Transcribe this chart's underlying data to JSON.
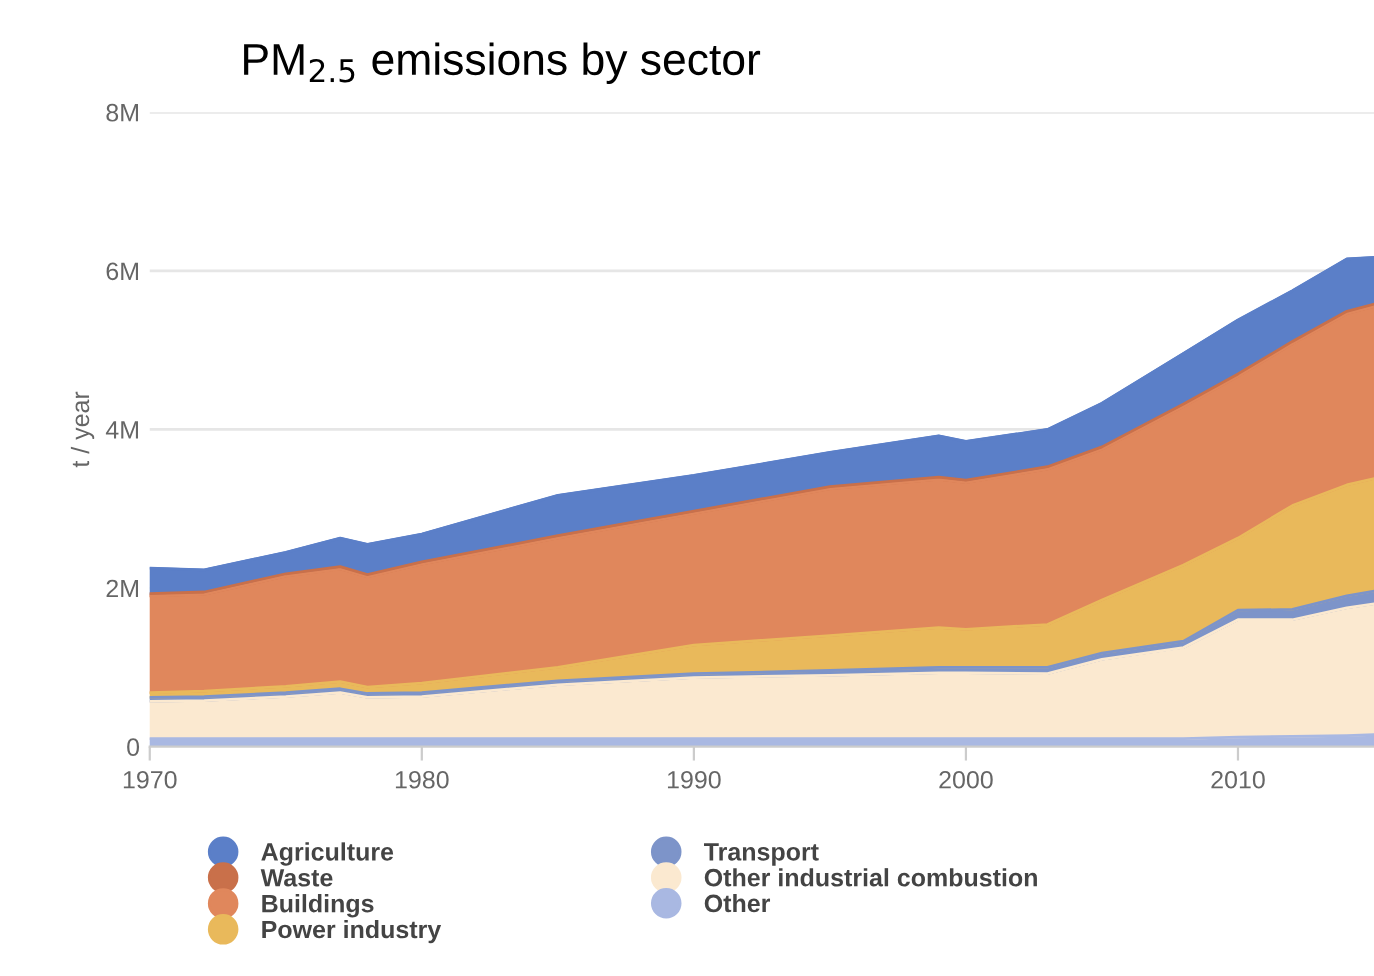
{
  "chart_data": {
    "type": "area",
    "stacked": true,
    "title": "PM$_{2.5}$ emissions by sector",
    "ylabel": "t / year",
    "x": [
      1970,
      1972,
      1975,
      1977,
      1978,
      1980,
      1985,
      1990,
      1995,
      1999,
      2000,
      2003,
      2005,
      2008,
      2010,
      2012,
      2014,
      2015
    ],
    "series": [
      {
        "name": "Other",
        "color": "#a9b8e2",
        "values": [
          0.1,
          0.1,
          0.1,
          0.1,
          0.1,
          0.1,
          0.1,
          0.1,
          0.1,
          0.1,
          0.1,
          0.1,
          0.1,
          0.1,
          0.12,
          0.13,
          0.14,
          0.15
        ]
      },
      {
        "name": "Other industrial combustion",
        "color": "#fbe9d0",
        "values": [
          0.47,
          0.48,
          0.53,
          0.58,
          0.52,
          0.53,
          0.68,
          0.77,
          0.8,
          0.83,
          0.83,
          0.82,
          1.0,
          1.15,
          1.48,
          1.47,
          1.61,
          1.65
        ]
      },
      {
        "name": "Transport",
        "color": "#7d94c9",
        "values": [
          0.05,
          0.05,
          0.05,
          0.05,
          0.05,
          0.05,
          0.05,
          0.05,
          0.06,
          0.07,
          0.07,
          0.08,
          0.08,
          0.08,
          0.12,
          0.13,
          0.15,
          0.16
        ]
      },
      {
        "name": "Power industry",
        "color": "#e9b95b",
        "values": [
          0.06,
          0.07,
          0.08,
          0.09,
          0.08,
          0.12,
          0.17,
          0.36,
          0.44,
          0.5,
          0.48,
          0.54,
          0.67,
          0.96,
          0.91,
          1.31,
          1.4,
          1.42
        ]
      },
      {
        "name": "Buildings",
        "color": "#e0875c",
        "values": [
          1.22,
          1.22,
          1.39,
          1.42,
          1.39,
          1.5,
          1.63,
          1.66,
          1.85,
          1.87,
          1.85,
          1.96,
          1.9,
          2.0,
          2.04,
          2.04,
          2.16,
          2.17
        ]
      },
      {
        "name": "Waste",
        "color": "#c9704a",
        "values": [
          0.03,
          0.03,
          0.03,
          0.03,
          0.03,
          0.03,
          0.03,
          0.03,
          0.03,
          0.03,
          0.03,
          0.03,
          0.03,
          0.03,
          0.03,
          0.03,
          0.03,
          0.03
        ]
      },
      {
        "name": "Agriculture",
        "color": "#5b7fc8",
        "values": [
          0.32,
          0.28,
          0.27,
          0.36,
          0.38,
          0.35,
          0.51,
          0.45,
          0.43,
          0.52,
          0.49,
          0.47,
          0.55,
          0.64,
          0.68,
          0.64,
          0.66,
          0.59
        ]
      }
    ],
    "xlim": [
      1970,
      2015
    ],
    "xticks": [
      1970,
      1980,
      1990,
      2000,
      2010
    ],
    "ylim": [
      0,
      8
    ],
    "yticks": [
      0,
      {
        "value": 2,
        "label": "2M"
      },
      {
        "value": 4,
        "label": "4M"
      },
      {
        "value": 6,
        "label": "6M"
      },
      {
        "value": 8,
        "label": "8M"
      }
    ],
    "grid": "y",
    "legend": "bottom"
  }
}
